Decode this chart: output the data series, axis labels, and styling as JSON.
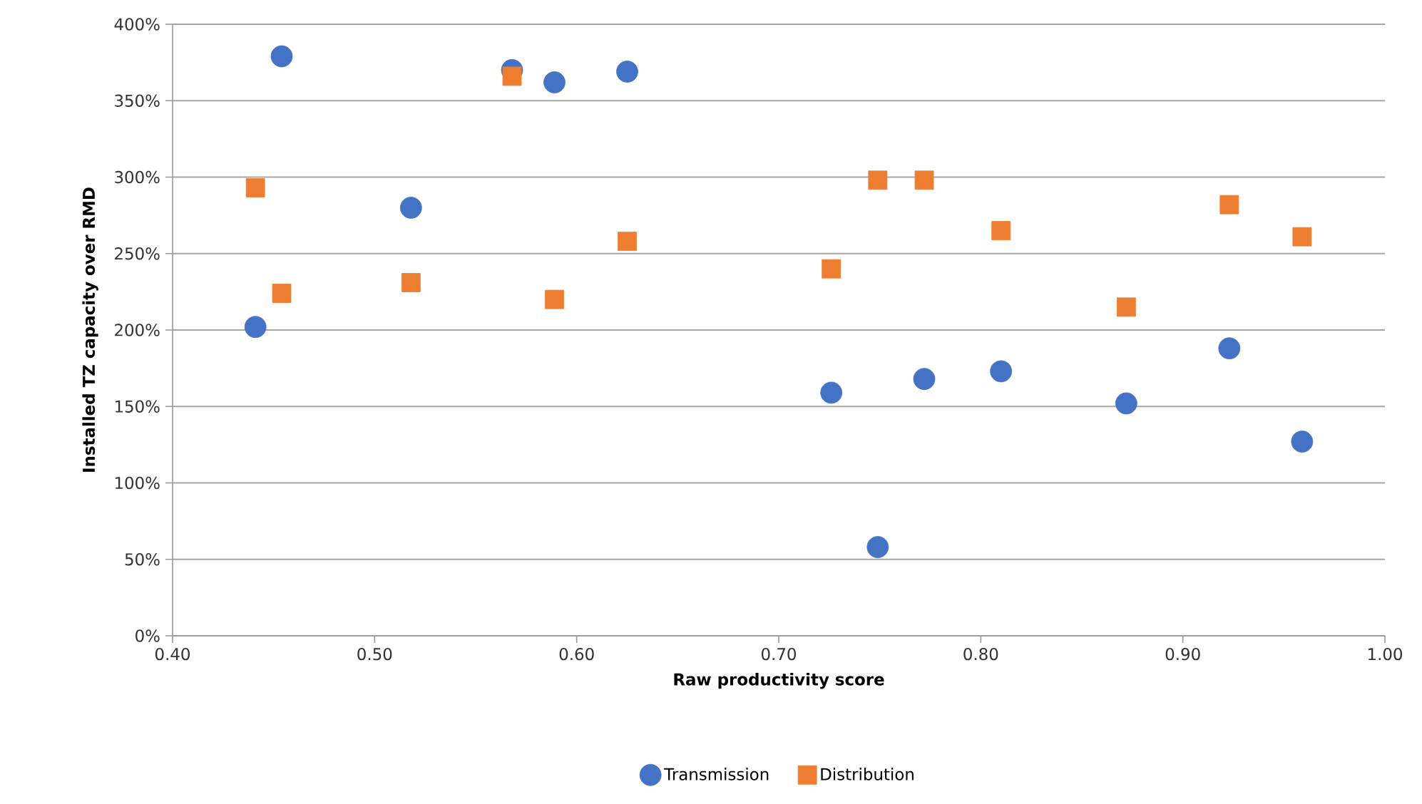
{
  "chart_data": {
    "type": "scatter",
    "xlabel": "Raw productivity score",
    "ylabel": "Installed TZ capacity over RMD",
    "xlim": [
      0.4,
      1.0
    ],
    "xticks": [
      {
        "value": 0.4,
        "label": "0.40"
      },
      {
        "value": 0.5,
        "label": "0.50"
      },
      {
        "value": 0.6,
        "label": "0.60"
      },
      {
        "value": 0.7,
        "label": "0.70"
      },
      {
        "value": 0.8,
        "label": "0.80"
      },
      {
        "value": 0.9,
        "label": "0.90"
      },
      {
        "value": 1.0,
        "label": "1.00"
      }
    ],
    "ylim": [
      0,
      400
    ],
    "yticks": [
      {
        "value": 0,
        "label": "0%"
      },
      {
        "value": 50,
        "label": "50%"
      },
      {
        "value": 100,
        "label": "100%"
      },
      {
        "value": 150,
        "label": "150%"
      },
      {
        "value": 200,
        "label": "200%"
      },
      {
        "value": 250,
        "label": "250%"
      },
      {
        "value": 300,
        "label": "300%"
      },
      {
        "value": 350,
        "label": "350%"
      },
      {
        "value": 400,
        "label": "400%"
      }
    ],
    "grid": "y",
    "legend": "bottom",
    "series": [
      {
        "name": "Transmission",
        "color": "#4472c4",
        "marker": "circle",
        "x": [
          0.454,
          0.441,
          0.518,
          0.568,
          0.589,
          0.625,
          0.726,
          0.749,
          0.772,
          0.81,
          0.872,
          0.923,
          0.959
        ],
        "values": [
          379,
          202,
          280,
          370,
          362,
          369,
          159,
          58,
          168,
          173,
          152,
          188,
          127
        ]
      },
      {
        "name": "Distribution",
        "color": "#ed7d31",
        "marker": "square",
        "x": [
          0.441,
          0.454,
          0.518,
          0.568,
          0.589,
          0.625,
          0.726,
          0.749,
          0.772,
          0.81,
          0.872,
          0.923,
          0.959
        ],
        "values": [
          293,
          224,
          231,
          366,
          220,
          258,
          240,
          298,
          298,
          265,
          215,
          282,
          261
        ]
      }
    ]
  }
}
